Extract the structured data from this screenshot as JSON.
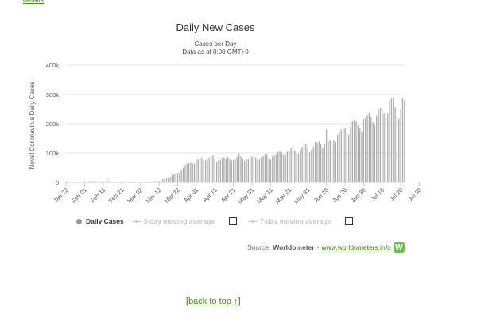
{
  "page": {
    "details_link": "details",
    "back_to_top_open": "[",
    "back_to_top_label": "back to top ↑",
    "back_to_top_close": "]"
  },
  "source": {
    "prefix": "Source:",
    "name": "Worldometer",
    "separator": "-",
    "url_text": "www.worldometers.info",
    "logo_letter": "W"
  },
  "legend": {
    "daily_cases": "Daily Cases",
    "avg3": "3-day moving average",
    "avg7": "7-day moving average"
  },
  "colors": {
    "bar": "#a9a9a9",
    "grid": "#e6e6e6",
    "link": "#4a8a1c",
    "logo": "#6cc04a"
  },
  "chart_data": {
    "type": "bar",
    "title": "Daily New Cases",
    "subtitle_line1": "Cases per Day",
    "subtitle_line2": "Data as of 0:00 GMT+0",
    "ylabel": "Novel Coronavirus Daily Cases",
    "xlabel": "",
    "ylim": [
      0,
      400000
    ],
    "yticks": [
      0,
      100000,
      200000,
      300000,
      400000
    ],
    "ytick_labels": [
      "0",
      "100k",
      "200k",
      "300k",
      "400k"
    ],
    "grid": true,
    "legend_position": "bottom",
    "xtick_labels": [
      "Jan 22",
      "Feb 01",
      "Feb 11",
      "Feb 21",
      "Mar 02",
      "Mar 12",
      "Mar 22",
      "Apr 01",
      "Apr 11",
      "Apr 21",
      "May 01",
      "May 11",
      "May 21",
      "May 31",
      "Jun 10",
      "Jun 20",
      "Jun 30",
      "Jul 10",
      "Jul 20",
      "Jul 30"
    ],
    "start_date": "Jan 22",
    "series": [
      {
        "values": [
          600,
          100,
          700,
          800,
          1700,
          2100,
          2700,
          1600,
          2100,
          2600,
          2100,
          2600,
          3100,
          3900,
          3600,
          3800,
          3300,
          3600,
          2900,
          2700,
          2700,
          2100,
          15100,
          5100,
          2600,
          2100,
          2100,
          1900,
          1900,
          1800,
          400,
          600,
          900,
          300,
          800,
          600,
          900,
          900,
          1100,
          1400,
          1800,
          1900,
          2200,
          1900,
          2600,
          2700,
          2800,
          3800,
          4000,
          4100,
          4400,
          7900,
          10900,
          11100,
          14400,
          16000,
          18200,
          24900,
          27100,
          30400,
          32000,
          32500,
          40600,
          49100,
          58000,
          63700,
          64700,
          69100,
          63800,
          63400,
          75100,
          80200,
          84900,
          84400,
          73100,
          75800,
          79400,
          84400,
          89400,
          91300,
          81500,
          71000,
          74200,
          76000,
          85400,
          83800,
          82100,
          86300,
          80000,
          74500,
          76300,
          78500,
          86400,
          98400,
          88400,
          81700,
          73600,
          78400,
          79700,
          89200,
          87000,
          91500,
          85500,
          75300,
          80000,
          86200,
          88700,
          96400,
          96000,
          79800,
          77600,
          88900,
          91300,
          96000,
          104100,
          106100,
          101400,
          93400,
          96700,
          104300,
          107600,
          118200,
          124800,
          109700,
          97800,
          97900,
          111000,
          121700,
          132200,
          132600,
          119600,
          101500,
          110500,
          121400,
          137800,
          136400,
          139300,
          130100,
          118800,
          133500,
          180500,
          140200,
          142600,
          138900,
          144500,
          137900,
          163400,
          173400,
          179600,
          187300,
          183100,
          176000,
          163100,
          189500,
          207500,
          214200,
          207600,
          193400,
          183300,
          173700,
          215900,
          219300,
          229100,
          237600,
          223300,
          205300,
          197900,
          227900,
          247400,
          254600,
          252800,
          234500,
          220000,
          235000,
          281000,
          287000,
          289000,
          256000,
          225000,
          217000,
          250000,
          288000,
          280000
        ]
      }
    ]
  }
}
